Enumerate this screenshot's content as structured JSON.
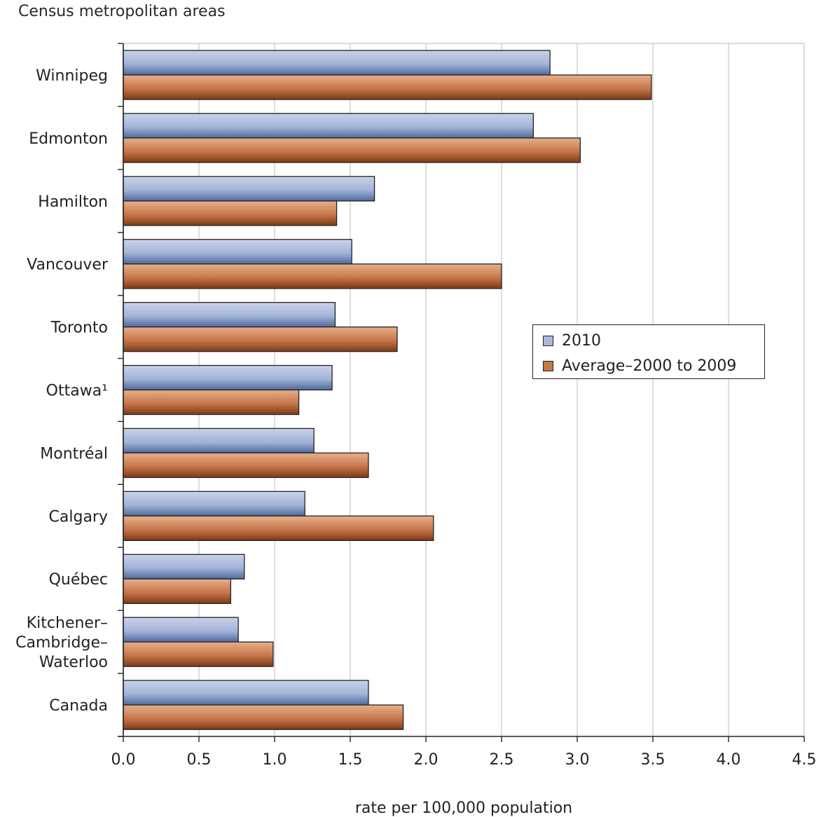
{
  "chart_data": {
    "type": "bar",
    "orientation": "horizontal",
    "ytitle": "Census metropolitan areas",
    "xlabel": "rate per 100,000 population",
    "categories": [
      [
        "Winnipeg"
      ],
      [
        "Edmonton"
      ],
      [
        "Hamilton"
      ],
      [
        "Vancouver"
      ],
      [
        "Toronto"
      ],
      [
        "Ottawa¹"
      ],
      [
        "Montréal"
      ],
      [
        "Calgary"
      ],
      [
        "Québec"
      ],
      [
        "Kitchener–",
        "Cambridge–",
        "Waterloo"
      ],
      [
        "Canada"
      ]
    ],
    "series": [
      {
        "name": "2010",
        "color": "#a9b9d9",
        "values": [
          2.82,
          2.71,
          1.66,
          1.51,
          1.4,
          1.38,
          1.26,
          1.2,
          0.8,
          0.76,
          1.62
        ]
      },
      {
        "name": "Average–2000 to 2009",
        "color": "#c8764a",
        "values": [
          3.49,
          3.02,
          1.41,
          2.5,
          1.81,
          1.16,
          1.62,
          2.05,
          0.71,
          0.99,
          1.85
        ]
      }
    ],
    "xlim": [
      0,
      4.5
    ],
    "xticks": [
      "0.0",
      "0.5",
      "1.0",
      "1.5",
      "2.0",
      "2.5",
      "3.0",
      "3.5",
      "4.0",
      "4.5"
    ],
    "grid": "vertical",
    "legend": "right-middle"
  }
}
